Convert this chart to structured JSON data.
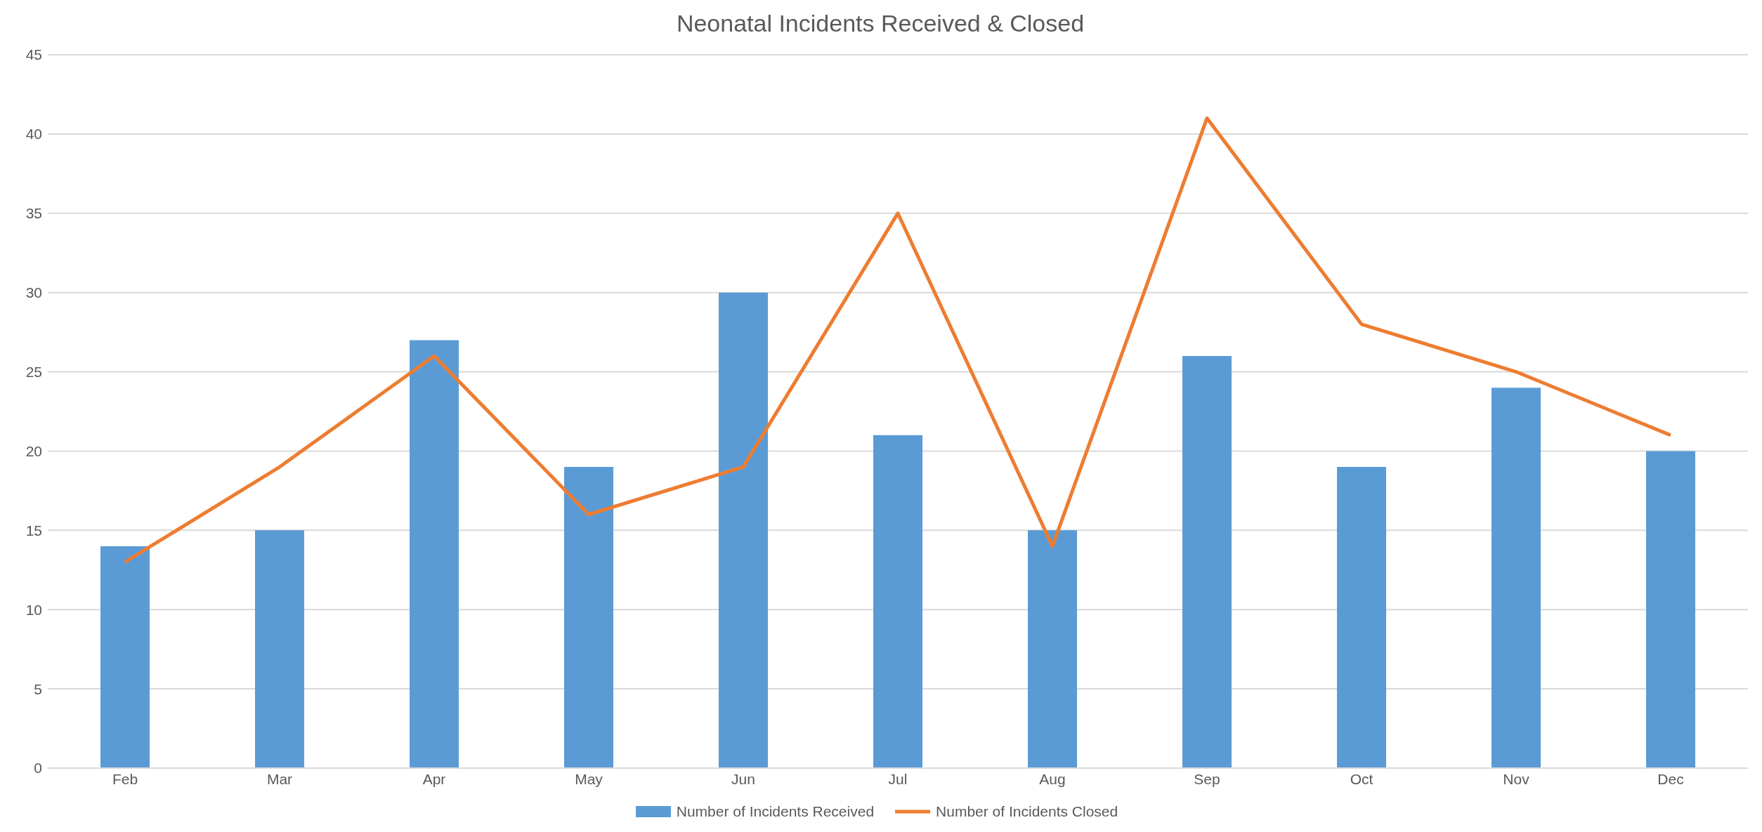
{
  "chart_data": {
    "type": "bar",
    "title": "Neonatal Incidents Received & Closed",
    "categories": [
      "Feb",
      "Mar",
      "Apr",
      "May",
      "Jun",
      "Jul",
      "Aug",
      "Sep",
      "Oct",
      "Nov",
      "Dec"
    ],
    "series": [
      {
        "name": "Number of Incidents Received",
        "color": "#5b9bd5",
        "values": [
          14,
          15,
          27,
          19,
          30,
          21,
          15,
          26,
          19,
          24,
          20
        ]
      },
      {
        "name": "Number of Incidents Closed",
        "type": "line",
        "color": "#ed7d31",
        "values": [
          13,
          19,
          26,
          16,
          19,
          35,
          14,
          41,
          28,
          25,
          21
        ]
      }
    ],
    "ylim": [
      0,
      45
    ],
    "yticks": [
      0,
      5,
      10,
      15,
      20,
      25,
      30,
      35,
      40,
      45
    ],
    "grid": "y",
    "legend": "bottom"
  }
}
